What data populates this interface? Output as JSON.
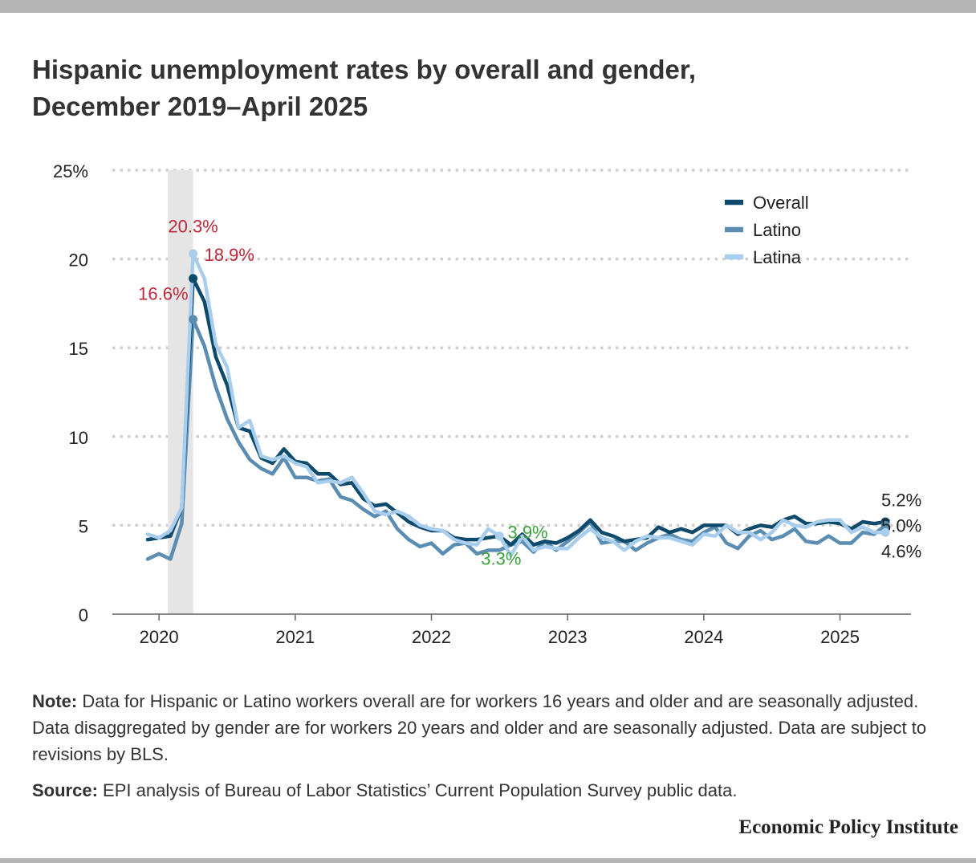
{
  "title": {
    "line1": "Hispanic unemployment rates by overall and gender,",
    "line2": "December 2019–April 2025"
  },
  "note": {
    "label": "Note:",
    "text": "Data for Hispanic or Latino workers overall are for workers 16 years and older and are seasonally adjusted. Data disaggregated by gender are for workers 20 years and older and are seasonally adjusted. Data are subject to revisions by BLS."
  },
  "source": {
    "label": "Source:",
    "text": "EPI analysis of Bureau of Labor Statistics’ Current Population Survey public data."
  },
  "brand": "Economic Policy Institute",
  "colors": {
    "overall": "#0d4a6b",
    "latino": "#5b8db3",
    "latina": "#a9cdec",
    "peak_annotation": "#c0283a",
    "low_annotation": "#3aa33a",
    "recession_shade": "#e5e5e5",
    "grid": "#d0d0d0"
  },
  "chart_data": {
    "type": "line",
    "title": "Hispanic unemployment rates by overall and gender, December 2019–April 2025",
    "xlabel": "",
    "ylabel": "",
    "ylim": [
      0,
      25
    ],
    "yticks": [
      0,
      5,
      10,
      15,
      20,
      25
    ],
    "ytick_labels": [
      "0",
      "5",
      "10",
      "15",
      "20",
      "25%"
    ],
    "x_start": "2019-12",
    "x_end": "2025-04",
    "xticks": [
      "2020-01",
      "2021-01",
      "2022-01",
      "2023-01",
      "2024-01",
      "2025-01"
    ],
    "xtick_labels": [
      "2020",
      "2021",
      "2022",
      "2023",
      "2024",
      "2025"
    ],
    "shaded_period": [
      "2020-02",
      "2020-04"
    ],
    "grid": "horizontal dotted",
    "legend": "top-right",
    "series": [
      {
        "name": "Overall",
        "color": "#0d4a6b",
        "values": [
          4.2,
          4.3,
          4.4,
          6.0,
          18.9,
          17.6,
          14.5,
          12.9,
          10.5,
          10.3,
          8.8,
          8.5,
          9.3,
          8.6,
          8.5,
          7.9,
          7.9,
          7.3,
          7.4,
          6.5,
          6.1,
          6.2,
          5.7,
          5.2,
          4.9,
          4.7,
          4.7,
          4.3,
          4.2,
          4.2,
          4.3,
          4.4,
          3.9,
          4.5,
          3.9,
          4.1,
          4.0,
          4.3,
          4.7,
          5.3,
          4.6,
          4.4,
          4.1,
          4.2,
          4.3,
          4.9,
          4.6,
          4.8,
          4.6,
          5.0,
          5.0,
          5.0,
          4.5,
          4.8,
          5.0,
          4.9,
          5.3,
          5.5,
          5.1,
          5.1,
          5.2,
          5.1,
          4.8,
          5.2,
          5.1,
          5.2
        ],
        "end_label": "5.2%"
      },
      {
        "name": "Latino",
        "color": "#5b8db3",
        "values": [
          3.1,
          3.4,
          3.1,
          5.1,
          16.6,
          15.1,
          12.8,
          11.0,
          9.7,
          8.7,
          8.2,
          7.9,
          8.8,
          7.7,
          7.7,
          7.5,
          7.6,
          6.6,
          6.4,
          5.9,
          5.5,
          5.8,
          4.8,
          4.2,
          3.8,
          4.0,
          3.4,
          3.9,
          4.0,
          3.4,
          3.6,
          3.6,
          3.9,
          4.1,
          3.5,
          4.1,
          3.6,
          4.1,
          4.6,
          5.2,
          4.0,
          4.1,
          4.1,
          3.6,
          4.0,
          4.3,
          4.5,
          4.2,
          4.1,
          4.6,
          4.9,
          4.0,
          3.7,
          4.4,
          4.7,
          4.2,
          4.4,
          4.8,
          4.1,
          4.0,
          4.4,
          4.0,
          4.0,
          4.6,
          4.5,
          5.0
        ],
        "end_label": "5.0%"
      },
      {
        "name": "Latina",
        "color": "#a9cdec",
        "values": [
          4.5,
          4.3,
          4.7,
          6.0,
          20.3,
          18.9,
          15.2,
          13.9,
          10.5,
          10.9,
          8.9,
          8.7,
          8.9,
          8.5,
          8.3,
          7.4,
          7.5,
          7.4,
          7.7,
          6.8,
          5.8,
          5.6,
          5.8,
          5.5,
          5.0,
          4.8,
          4.7,
          4.2,
          4.0,
          3.9,
          4.8,
          4.4,
          3.3,
          4.4,
          3.6,
          3.8,
          3.7,
          3.7,
          4.3,
          4.8,
          4.3,
          4.1,
          3.6,
          4.1,
          4.4,
          4.3,
          4.3,
          4.1,
          3.9,
          4.5,
          4.4,
          5.0,
          4.6,
          4.6,
          4.2,
          4.6,
          5.3,
          5.0,
          4.9,
          5.2,
          5.3,
          5.3,
          4.6,
          4.9,
          4.6,
          4.6
        ],
        "end_label": "4.6%"
      }
    ],
    "annotations": [
      {
        "text": "20.3%",
        "series": "Latina",
        "date": "2020-04",
        "kind": "peak"
      },
      {
        "text": "18.9%",
        "series": "Overall",
        "date": "2020-04",
        "kind": "peak"
      },
      {
        "text": "16.6%",
        "series": "Latino",
        "date": "2020-04",
        "kind": "peak"
      },
      {
        "text": "3.9%",
        "series": "Overall",
        "date": "2022-08",
        "kind": "low"
      },
      {
        "text": "3.3%",
        "series": "Latina",
        "date": "2022-07",
        "kind": "low"
      }
    ]
  }
}
